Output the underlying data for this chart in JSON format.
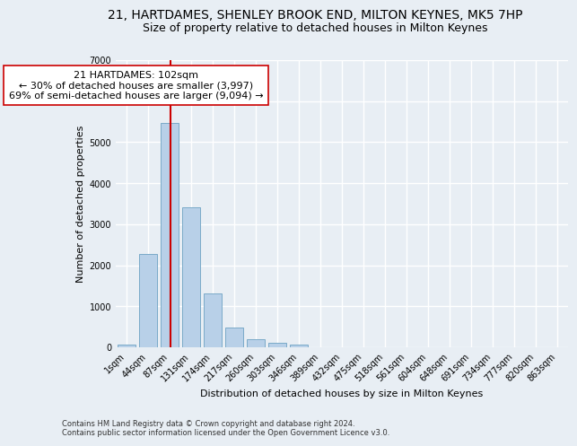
{
  "title": "21, HARTDAMES, SHENLEY BROOK END, MILTON KEYNES, MK5 7HP",
  "subtitle": "Size of property relative to detached houses in Milton Keynes",
  "xlabel": "Distribution of detached houses by size in Milton Keynes",
  "ylabel": "Number of detached properties",
  "footnote1": "Contains HM Land Registry data © Crown copyright and database right 2024.",
  "footnote2": "Contains public sector information licensed under the Open Government Licence v3.0.",
  "bar_labels": [
    "1sqm",
    "44sqm",
    "87sqm",
    "131sqm",
    "174sqm",
    "217sqm",
    "260sqm",
    "303sqm",
    "346sqm",
    "389sqm",
    "432sqm",
    "475sqm",
    "518sqm",
    "561sqm",
    "604sqm",
    "648sqm",
    "691sqm",
    "734sqm",
    "777sqm",
    "820sqm",
    "863sqm"
  ],
  "bar_heights": [
    70,
    2270,
    5470,
    3420,
    1310,
    490,
    200,
    120,
    60,
    0,
    0,
    0,
    0,
    0,
    0,
    0,
    0,
    0,
    0,
    0,
    0
  ],
  "bar_color": "#b8d0e8",
  "bar_edgecolor": "#7aaac8",
  "ylim": [
    0,
    7000
  ],
  "annotation_text": "21 HARTDAMES: 102sqm\n← 30% of detached houses are smaller (3,997)\n69% of semi-detached houses are larger (9,094) →",
  "vline_x": 2.05,
  "vline_color": "#cc0000",
  "annotation_box_facecolor": "#ffffff",
  "annotation_box_edgecolor": "#cc0000",
  "background_color": "#e8eef4",
  "grid_color": "#ffffff",
  "title_fontsize": 10,
  "subtitle_fontsize": 9,
  "annotation_fontsize": 8,
  "label_fontsize": 8,
  "tick_fontsize": 7,
  "footnote_fontsize": 6
}
